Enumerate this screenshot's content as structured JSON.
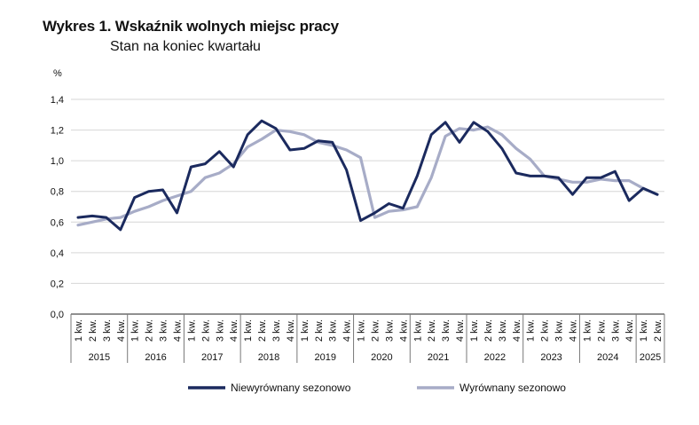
{
  "chart_data": {
    "type": "line",
    "title": "Wykres 1. Wskaźnik wolnych miejsc pracy",
    "subtitle": "Stan na koniec kwartału",
    "ylabel": "%",
    "ylim": [
      0,
      1.4
    ],
    "yticks": [
      "0,0",
      "0,2",
      "0,4",
      "0,6",
      "0,8",
      "1,0",
      "1,2",
      "1,4"
    ],
    "ytick_values": [
      0,
      0.2,
      0.4,
      0.6,
      0.8,
      1.0,
      1.2,
      1.4
    ],
    "grid": true,
    "legend_position": "bottom",
    "quarter_labels": [
      "1 kw.",
      "2 kw.",
      "3 kw.",
      "4 kw."
    ],
    "years": [
      {
        "year": "2015",
        "quarters": 4
      },
      {
        "year": "2016",
        "quarters": 4
      },
      {
        "year": "2017",
        "quarters": 4
      },
      {
        "year": "2018",
        "quarters": 4
      },
      {
        "year": "2019",
        "quarters": 4
      },
      {
        "year": "2020",
        "quarters": 4
      },
      {
        "year": "2021",
        "quarters": 4
      },
      {
        "year": "2022",
        "quarters": 4
      },
      {
        "year": "2023",
        "quarters": 4
      },
      {
        "year": "2024",
        "quarters": 4
      },
      {
        "year": "2025",
        "quarters": 2
      }
    ],
    "series": [
      {
        "name": "Niewyrównany sezonowo",
        "color": "#1b2a5e",
        "values": [
          0.63,
          0.64,
          0.63,
          0.55,
          0.76,
          0.8,
          0.81,
          0.66,
          0.96,
          0.98,
          1.06,
          0.96,
          1.17,
          1.26,
          1.21,
          1.07,
          1.08,
          1.13,
          1.12,
          0.94,
          0.61,
          0.66,
          0.72,
          0.69,
          0.9,
          1.17,
          1.25,
          1.12,
          1.25,
          1.19,
          1.08,
          0.92,
          0.9,
          0.9,
          0.89,
          0.78,
          0.89,
          0.89,
          0.93,
          0.74,
          0.82,
          0.78
        ]
      },
      {
        "name": "Wyrównany sezonowo",
        "color": "#a7acc7",
        "values": [
          0.58,
          0.6,
          0.62,
          0.63,
          0.67,
          0.7,
          0.74,
          0.77,
          0.8,
          0.89,
          0.92,
          0.98,
          1.09,
          1.14,
          1.2,
          1.19,
          1.17,
          1.12,
          1.1,
          1.07,
          1.02,
          0.63,
          0.67,
          0.68,
          0.7,
          0.89,
          1.16,
          1.21,
          1.2,
          1.22,
          1.17,
          1.08,
          1.01,
          0.9,
          0.88,
          0.86,
          0.86,
          0.88,
          0.87,
          0.87,
          0.82,
          0.78
        ]
      }
    ]
  }
}
